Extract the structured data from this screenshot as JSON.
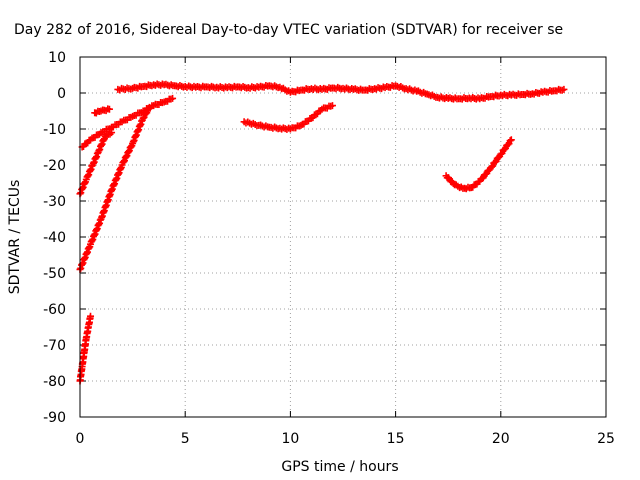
{
  "chart_data": {
    "type": "scatter",
    "title": "Day 282 of 2016, Sidereal Day-to-day VTEC variation (SDTVAR) for receiver se",
    "xlabel": "GPS time / hours",
    "ylabel": "SDTVAR / TECUs",
    "xlim": [
      0,
      25
    ],
    "ylim": [
      -90,
      10
    ],
    "xticks": [
      0,
      5,
      10,
      15,
      20,
      25
    ],
    "yticks": [
      -90,
      -80,
      -70,
      -60,
      -50,
      -40,
      -30,
      -20,
      -10,
      0,
      10
    ],
    "grid": true,
    "marker": "plus",
    "series_color": "#ff0000",
    "series": [
      {
        "x": [
          0.0,
          0.1,
          0.2,
          0.3,
          0.4,
          0.5
        ],
        "y": [
          -80,
          -76,
          -72,
          -68,
          -65,
          -62
        ]
      },
      {
        "x": [
          0.0,
          0.5,
          1.0,
          1.5,
          2.0,
          2.5,
          3.0,
          3.3
        ],
        "y": [
          -49,
          -42,
          -35,
          -27,
          -20,
          -14,
          -7,
          -4
        ]
      },
      {
        "x": [
          0.0,
          0.3,
          0.6,
          0.9,
          1.2,
          1.5
        ],
        "y": [
          -28,
          -24,
          -20,
          -16,
          -12,
          -11
        ]
      },
      {
        "x": [
          0.1,
          0.5,
          1.0,
          1.5,
          2.0,
          2.5,
          3.0,
          3.5,
          4.0,
          4.4
        ],
        "y": [
          -15,
          -13,
          -11,
          -9.5,
          -8,
          -6.5,
          -5,
          -3.5,
          -2.5,
          -1.5
        ]
      },
      {
        "x": [
          0.7,
          1.0,
          1.4
        ],
        "y": [
          -5.5,
          -5,
          -4.5
        ]
      },
      {
        "x": [
          1.8,
          2.5,
          3.0,
          3.5,
          4.0,
          4.5,
          5.0,
          5.5,
          6.0,
          6.5,
          7.0,
          7.5,
          8.0,
          8.5,
          9.0,
          9.5,
          10.0,
          10.5,
          11.0,
          11.5,
          12.0,
          12.5,
          13.0,
          13.5,
          14.0,
          14.5,
          15.0,
          15.5,
          16.0,
          16.5,
          17.0,
          17.5,
          18.0,
          18.5,
          19.0,
          19.5,
          20.0,
          20.5,
          21.0,
          21.5,
          22.0,
          22.5,
          23.0
        ],
        "y": [
          1.0,
          1.3,
          1.8,
          2.3,
          2.3,
          2.0,
          1.8,
          1.6,
          1.7,
          1.6,
          1.5,
          1.7,
          1.5,
          1.6,
          2.0,
          1.6,
          0.2,
          0.8,
          1.2,
          1.0,
          1.4,
          1.3,
          1.0,
          0.8,
          1.2,
          1.5,
          2.0,
          1.2,
          0.5,
          -0.3,
          -1.2,
          -1.5,
          -1.6,
          -1.4,
          -1.6,
          -1.0,
          -0.6,
          -0.6,
          -0.4,
          -0.2,
          0.2,
          0.6,
          1.0
        ]
      },
      {
        "x": [
          7.8,
          8.5,
          9.0,
          9.5,
          10.0,
          10.5,
          11.0,
          11.5,
          12.0
        ],
        "y": [
          -8,
          -9,
          -9.5,
          -9.8,
          -10,
          -9,
          -7,
          -4.5,
          -3.5
        ]
      },
      {
        "x": [
          17.4,
          17.8,
          18.2,
          18.6,
          19.0,
          19.5,
          20.0,
          20.5
        ],
        "y": [
          -23,
          -25.5,
          -26.5,
          -26.3,
          -24.5,
          -21,
          -17,
          -13
        ]
      }
    ]
  }
}
